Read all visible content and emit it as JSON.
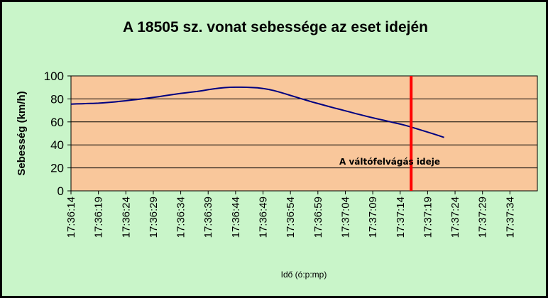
{
  "chart_data": {
    "type": "line",
    "title": "A 18505 sz. vonat sebessége az eset idején",
    "xlabel": "Idő (ó:p:mp)",
    "ylabel": "Sebesség (km/h)",
    "ylim": [
      0,
      100
    ],
    "y_ticks": [
      "0",
      "20",
      "40",
      "60",
      "80",
      "100"
    ],
    "x_ticks": [
      "17:36:14",
      "17:36:19",
      "17:36:24",
      "17:36:29",
      "17:36:34",
      "17:36:39",
      "17:36:44",
      "17:36:49",
      "17:36:54",
      "17:36:59",
      "17:37:04",
      "17:37:09",
      "17:37:14",
      "17:37:19",
      "17:37:24",
      "17:37:29",
      "17:37:34"
    ],
    "grid": true,
    "series": [
      {
        "values": [
          75.5,
          75.7,
          75.8,
          76,
          76.1,
          76.3,
          76.6,
          77,
          77.4,
          77.9,
          78.4,
          79,
          79.5,
          80.1,
          80.7,
          81.3,
          82,
          82.7,
          83.4,
          84.1,
          84.8,
          85.4,
          85.9,
          86.5,
          87.2,
          88,
          88.7,
          89.3,
          89.8,
          90.1,
          90.2,
          90.2,
          90.1,
          89.9,
          89.6,
          89.1,
          88.3,
          87.2,
          85.9,
          84.5,
          83,
          81.6,
          80.1,
          78.7,
          77.3,
          76,
          74.7,
          73.4,
          72.1,
          70.9,
          69.6,
          68.4,
          67.1,
          65.9,
          64.7,
          63.6,
          62.5,
          61.4,
          60.3,
          59.2,
          58.1,
          56.9,
          55.5,
          54.1,
          52.6,
          51.1,
          49.6,
          48.1,
          46.5
        ],
        "color": "#000080"
      }
    ],
    "event_marker": {
      "time": "17:37:16",
      "label": "A váltófelvágás ideje",
      "color": "#ff0000"
    },
    "colors": {
      "background": "#c9f5c9",
      "plot_area": "#f9c79b",
      "frame": "#000000"
    }
  }
}
